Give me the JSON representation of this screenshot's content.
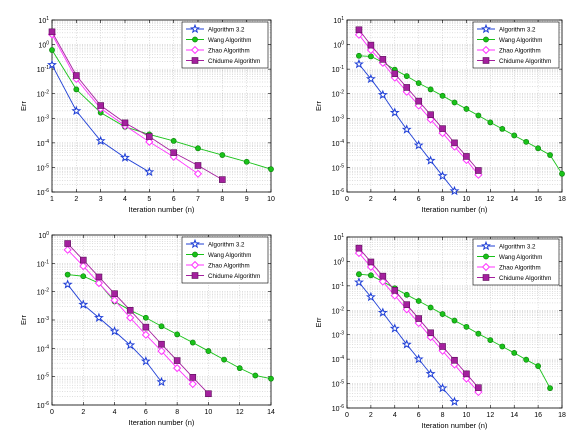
{
  "chart_data": [
    {
      "type": "line",
      "title": "",
      "xlabel": "Iteration number (n)",
      "ylabel": "Err",
      "yscale": "log",
      "xlim": [
        1,
        10
      ],
      "ylim": [
        1e-06,
        10
      ],
      "xticks": [
        "1",
        "2",
        "3",
        "4",
        "5",
        "6",
        "7",
        "8",
        "9",
        "10"
      ],
      "yticks": [
        "10^-6",
        "10^-5",
        "10^-4",
        "10^-3",
        "10^-2",
        "10^-1",
        "10^0",
        "10^1"
      ],
      "grid": true,
      "legend_position": "top-right",
      "series": [
        {
          "name": "Algorithm 3.2",
          "x": [
            1,
            2,
            3,
            4,
            5
          ],
          "y": [
            0.15,
            0.002,
            0.00012,
            2.5e-05,
            6.5e-06
          ]
        },
        {
          "name": "Wang Algorithm",
          "x": [
            1,
            2,
            3,
            4,
            5,
            6,
            7,
            8,
            9,
            10
          ],
          "y": [
            0.6,
            0.015,
            0.0017,
            0.00045,
            0.00022,
            0.00012,
            6e-05,
            3.2e-05,
            1.7e-05,
            8.5e-06
          ]
        },
        {
          "name": "Zhao Algorithm",
          "x": [
            1,
            2,
            3,
            4,
            5,
            6,
            7
          ],
          "y": [
            2.6,
            0.04,
            0.0025,
            0.0005,
            0.00011,
            2.7e-05,
            5.5e-06
          ]
        },
        {
          "name": "Chidume Algorithm",
          "x": [
            1,
            2,
            3,
            4,
            5,
            6,
            7,
            8
          ],
          "y": [
            3.3,
            0.055,
            0.0033,
            0.00065,
            0.00018,
            4e-05,
            1.2e-05,
            3.2e-06
          ]
        }
      ]
    },
    {
      "type": "line",
      "title": "",
      "xlabel": "Iteration number (n)",
      "ylabel": "Err",
      "yscale": "log",
      "xlim": [
        0,
        18
      ],
      "ylim": [
        1e-06,
        10
      ],
      "xticks": [
        "0",
        "2",
        "4",
        "6",
        "8",
        "10",
        "12",
        "14",
        "16",
        "18"
      ],
      "yticks": [
        "10^-6",
        "10^-5",
        "10^-4",
        "10^-3",
        "10^-2",
        "10^-1",
        "10^0",
        "10^1"
      ],
      "grid": true,
      "legend_position": "top-right",
      "series": [
        {
          "name": "Algorithm 3.2",
          "x": [
            1,
            2,
            3,
            4,
            5,
            6,
            7,
            8,
            9
          ],
          "y": [
            0.16,
            0.04,
            0.009,
            0.0017,
            0.00035,
            8e-05,
            1.9e-05,
            4.5e-06,
            1.1e-06
          ]
        },
        {
          "name": "Wang Algorithm",
          "x": [
            1,
            2,
            3,
            4,
            5,
            6,
            7,
            8,
            9,
            10,
            11,
            12,
            13,
            14,
            15,
            16,
            17,
            18
          ],
          "y": [
            0.35,
            0.33,
            0.19,
            0.095,
            0.052,
            0.027,
            0.015,
            0.0082,
            0.0044,
            0.0024,
            0.0013,
            0.00068,
            0.00037,
            0.0002,
            0.00011,
            6e-05,
            3.2e-05,
            5.5e-06
          ]
        },
        {
          "name": "Zhao Algorithm",
          "x": [
            1,
            2,
            3,
            4,
            5,
            6,
            7,
            8,
            9,
            10,
            11
          ],
          "y": [
            2.5,
            0.6,
            0.18,
            0.045,
            0.012,
            0.0033,
            0.0009,
            0.00025,
            7e-05,
            2e-05,
            5e-06
          ]
        },
        {
          "name": "Chidume Algorithm",
          "x": [
            1,
            2,
            3,
            4,
            5,
            6,
            7,
            8,
            9,
            10,
            11
          ],
          "y": [
            4.0,
            0.95,
            0.25,
            0.065,
            0.018,
            0.005,
            0.0014,
            0.00038,
            0.0001,
            2.8e-05,
            7.5e-06
          ]
        }
      ]
    },
    {
      "type": "line",
      "title": "",
      "xlabel": "Iteration number (n)",
      "ylabel": "Err",
      "yscale": "log",
      "xlim": [
        0,
        14
      ],
      "ylim": [
        1e-06,
        1
      ],
      "xticks": [
        "0",
        "2",
        "4",
        "6",
        "8",
        "10",
        "12",
        "14"
      ],
      "yticks": [
        "10^-6",
        "10^-5",
        "10^-4",
        "10^-3",
        "10^-2",
        "10^-1",
        "10^0"
      ],
      "grid": true,
      "legend_position": "top-right",
      "series": [
        {
          "name": "Algorithm 3.2",
          "x": [
            1,
            2,
            3,
            4,
            5,
            6,
            7
          ],
          "y": [
            0.018,
            0.0035,
            0.0012,
            0.0004,
            0.00013,
            3.5e-05,
            6.5e-06
          ]
        },
        {
          "name": "Wang Algorithm",
          "x": [
            1,
            2,
            3,
            4,
            5,
            6,
            7,
            8,
            9,
            10,
            11,
            12,
            13,
            14
          ],
          "y": [
            0.04,
            0.035,
            0.02,
            0.0045,
            0.0022,
            0.0012,
            0.0006,
            0.00031,
            0.00016,
            8e-05,
            4e-05,
            2e-05,
            1.1e-05,
            8.5e-06
          ]
        },
        {
          "name": "Zhao Algorithm",
          "x": [
            1,
            2,
            3,
            4,
            5,
            6,
            7,
            8,
            9
          ],
          "y": [
            0.3,
            0.08,
            0.02,
            0.005,
            0.0012,
            0.0003,
            8e-05,
            2e-05,
            5.5e-06
          ]
        },
        {
          "name": "Chidume Algorithm",
          "x": [
            1,
            2,
            3,
            4,
            5,
            6,
            7,
            8,
            9,
            10
          ],
          "y": [
            0.5,
            0.13,
            0.033,
            0.0085,
            0.0022,
            0.00056,
            0.00014,
            3.7e-05,
            9.5e-06,
            2.5e-06
          ]
        }
      ]
    },
    {
      "type": "line",
      "title": "",
      "xlabel": "Iteration number (n)",
      "ylabel": "Err",
      "yscale": "log",
      "xlim": [
        0,
        18
      ],
      "ylim": [
        1e-06,
        10
      ],
      "xticks": [
        "0",
        "2",
        "4",
        "6",
        "8",
        "10",
        "12",
        "14",
        "16",
        "18"
      ],
      "yticks": [
        "10^-6",
        "10^-5",
        "10^-4",
        "10^-3",
        "10^-2",
        "10^-1",
        "10^0",
        "10^1"
      ],
      "grid": true,
      "legend_position": "top-right",
      "series": [
        {
          "name": "Algorithm 3.2",
          "x": [
            1,
            2,
            3,
            4,
            5,
            6,
            7,
            8,
            9
          ],
          "y": [
            0.14,
            0.035,
            0.008,
            0.0018,
            0.0004,
            0.0001,
            2.5e-05,
            6.5e-06,
            1.8e-06
          ]
        },
        {
          "name": "Wang Algorithm",
          "x": [
            1,
            2,
            3,
            4,
            5,
            6,
            7,
            8,
            9,
            10,
            11,
            12,
            13,
            14,
            15,
            16,
            17
          ],
          "y": [
            0.3,
            0.27,
            0.15,
            0.08,
            0.043,
            0.024,
            0.013,
            0.007,
            0.0038,
            0.0021,
            0.0011,
            0.0006,
            0.00033,
            0.00018,
            9.5e-05,
            5.2e-05,
            6.5e-06
          ]
        },
        {
          "name": "Zhao Algorithm",
          "x": [
            1,
            2,
            3,
            4,
            5,
            6,
            7,
            8,
            9,
            10,
            11
          ],
          "y": [
            2.2,
            0.6,
            0.15,
            0.04,
            0.011,
            0.003,
            0.0008,
            0.00022,
            6e-05,
            1.6e-05,
            4.5e-06
          ]
        },
        {
          "name": "Chidume Algorithm",
          "x": [
            1,
            2,
            3,
            4,
            5,
            6,
            7,
            8,
            9,
            10,
            11
          ],
          "y": [
            3.5,
            0.95,
            0.25,
            0.065,
            0.017,
            0.0046,
            0.0012,
            0.00033,
            9e-05,
            2.5e-05,
            6.8e-06
          ]
        }
      ]
    }
  ],
  "series_styles": [
    {
      "color": "#1f3fd6",
      "marker": "star"
    },
    {
      "color": "#19c219",
      "marker": "circle"
    },
    {
      "color": "#ff33ff",
      "marker": "diamond"
    },
    {
      "color": "#a4209e",
      "marker": "square"
    }
  ],
  "colors": {
    "grid": "#bdbdbd",
    "axis": "#000000"
  }
}
